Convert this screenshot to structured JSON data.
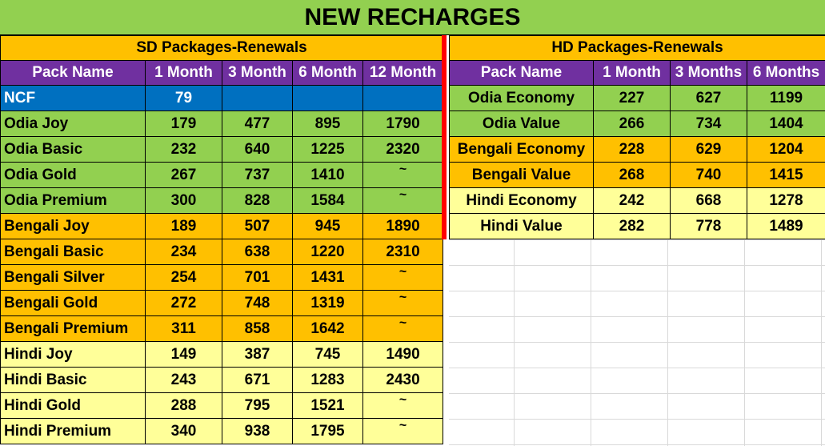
{
  "title": "NEW RECHARGES",
  "sd": {
    "heading": "SD Packages-Renewals",
    "columns": [
      "Pack Name",
      "1 Month",
      "3 Month",
      "6 Month",
      "12 Month"
    ],
    "rows": [
      {
        "name": "NCF",
        "m1": "79",
        "m3": "",
        "m6": "",
        "m12": "",
        "color": "blue"
      },
      {
        "name": "Odia Joy",
        "m1": "179",
        "m3": "477",
        "m6": "895",
        "m12": "1790",
        "color": "green"
      },
      {
        "name": "Odia Basic",
        "m1": "232",
        "m3": "640",
        "m6": "1225",
        "m12": "2320",
        "color": "green"
      },
      {
        "name": "Odia Gold",
        "m1": "267",
        "m3": "737",
        "m6": "1410",
        "m12": "~",
        "color": "green"
      },
      {
        "name": "Odia Premium",
        "m1": "300",
        "m3": "828",
        "m6": "1584",
        "m12": "~",
        "color": "green"
      },
      {
        "name": "Bengali Joy",
        "m1": "189",
        "m3": "507",
        "m6": "945",
        "m12": "1890",
        "color": "orange"
      },
      {
        "name": "Bengali Basic",
        "m1": "234",
        "m3": "638",
        "m6": "1220",
        "m12": "2310",
        "color": "orange"
      },
      {
        "name": "Bengali Silver",
        "m1": "254",
        "m3": "701",
        "m6": "1431",
        "m12": "~",
        "color": "orange"
      },
      {
        "name": "Bengali Gold",
        "m1": "272",
        "m3": "748",
        "m6": "1319",
        "m12": "~",
        "color": "orange"
      },
      {
        "name": "Bengali Premium",
        "m1": "311",
        "m3": "858",
        "m6": "1642",
        "m12": "~",
        "color": "orange"
      },
      {
        "name": "Hindi Joy",
        "m1": "149",
        "m3": "387",
        "m6": "745",
        "m12": "1490",
        "color": "yellow"
      },
      {
        "name": "Hindi Basic",
        "m1": "243",
        "m3": "671",
        "m6": "1283",
        "m12": "2430",
        "color": "yellow"
      },
      {
        "name": "Hindi Gold",
        "m1": "288",
        "m3": "795",
        "m6": "1521",
        "m12": "~",
        "color": "yellow"
      },
      {
        "name": "Hindi Premium",
        "m1": "340",
        "m3": "938",
        "m6": "1795",
        "m12": "~",
        "color": "yellow"
      }
    ]
  },
  "hd": {
    "heading": "HD Packages-Renewals",
    "columns": [
      "Pack Name",
      "1 Month",
      "3 Months",
      "6 Months"
    ],
    "rows": [
      {
        "name": "Odia Economy",
        "m1": "227",
        "m3": "627",
        "m6": "1199",
        "color": "green"
      },
      {
        "name": "Odia Value",
        "m1": "266",
        "m3": "734",
        "m6": "1404",
        "color": "green"
      },
      {
        "name": "Bengali Economy",
        "m1": "228",
        "m3": "629",
        "m6": "1204",
        "color": "orange"
      },
      {
        "name": "Bengali Value",
        "m1": "268",
        "m3": "740",
        "m6": "1415",
        "color": "orange"
      },
      {
        "name": "Hindi Economy",
        "m1": "242",
        "m3": "668",
        "m6": "1278",
        "color": "yellow"
      },
      {
        "name": "Hindi Value",
        "m1": "282",
        "m3": "778",
        "m6": "1489",
        "color": "yellow"
      }
    ]
  },
  "colors": {
    "title_bg": "#92d050",
    "heading_bg": "#ffc000",
    "column_header_bg": "#7030a0",
    "ncf_bg": "#0070c0",
    "green": "#92d050",
    "orange": "#ffc000",
    "yellow": "#ffff99",
    "separator": "#ff0000"
  }
}
